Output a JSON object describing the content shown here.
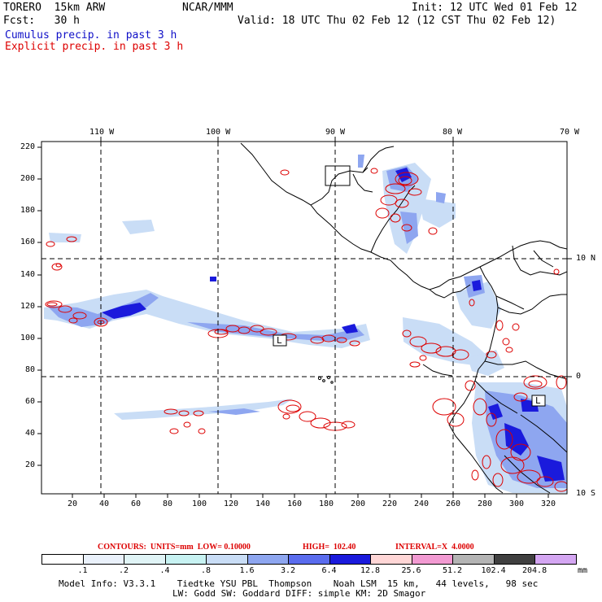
{
  "header": {
    "model": "TORERO  15km ARW",
    "org": "NCAR/MMM",
    "init": "Init: 12 UTC Wed 01 Feb 12",
    "fcst": "Fcst:   30 h",
    "valid": "Valid: 18 UTC Thu 02 Feb 12 (12 CST Thu 02 Feb 12)",
    "legend_cumulus": "Cumulus precip. in past 3 h",
    "legend_explicit": "Explicit precip. in past 3 h"
  },
  "colors": {
    "cumulus": "#1010c8",
    "explicit": "#dd0000",
    "grid": "#000000"
  },
  "map": {
    "lon_labels": [
      "110 W",
      "100 W",
      "90 W",
      "80 W",
      "70 W"
    ],
    "lat_labels": [
      "10 N",
      "0",
      "10 S"
    ],
    "y_ticks": [
      "220",
      "200",
      "180",
      "160",
      "140",
      "120",
      "100",
      "80",
      "60",
      "40",
      "20"
    ],
    "x_ticks": [
      "20",
      "40",
      "60",
      "80",
      "100",
      "120",
      "140",
      "160",
      "180",
      "200",
      "220",
      "240",
      "260",
      "280",
      "300",
      "320"
    ],
    "low_marker": "L"
  },
  "contour_info": {
    "contours": "CONTOURS:  UNITS=mm  LOW= 0.10000",
    "high": "HIGH=  102.40",
    "interval": "INTERVAL=X  4.0000"
  },
  "colorbar": {
    "labels": [
      ".1",
      ".2",
      ".4",
      ".8",
      "1.6",
      "3.2",
      "6.4",
      "12.8",
      "25.6",
      "51.2",
      "102.4",
      "204.8"
    ],
    "colors": [
      "#ffffff",
      "#eaf1fb",
      "#e0f4f6",
      "#c7f2f2",
      "#c9ddf6",
      "#8ea6f0",
      "#5a6cee",
      "#1a1adc",
      "#ffd6d6",
      "#f29ad2",
      "#b4b4b4",
      "#404040",
      "#d4a6f2"
    ],
    "units": "mm"
  },
  "footer": {
    "line1": "Model Info: V3.3.1    Tiedtke YSU PBL  Thompson    Noah LSM  15 km,   44 levels,   98 sec",
    "line2": "LW: Godd SW: Goddard DIFF: simple KM: 2D Smagor"
  }
}
